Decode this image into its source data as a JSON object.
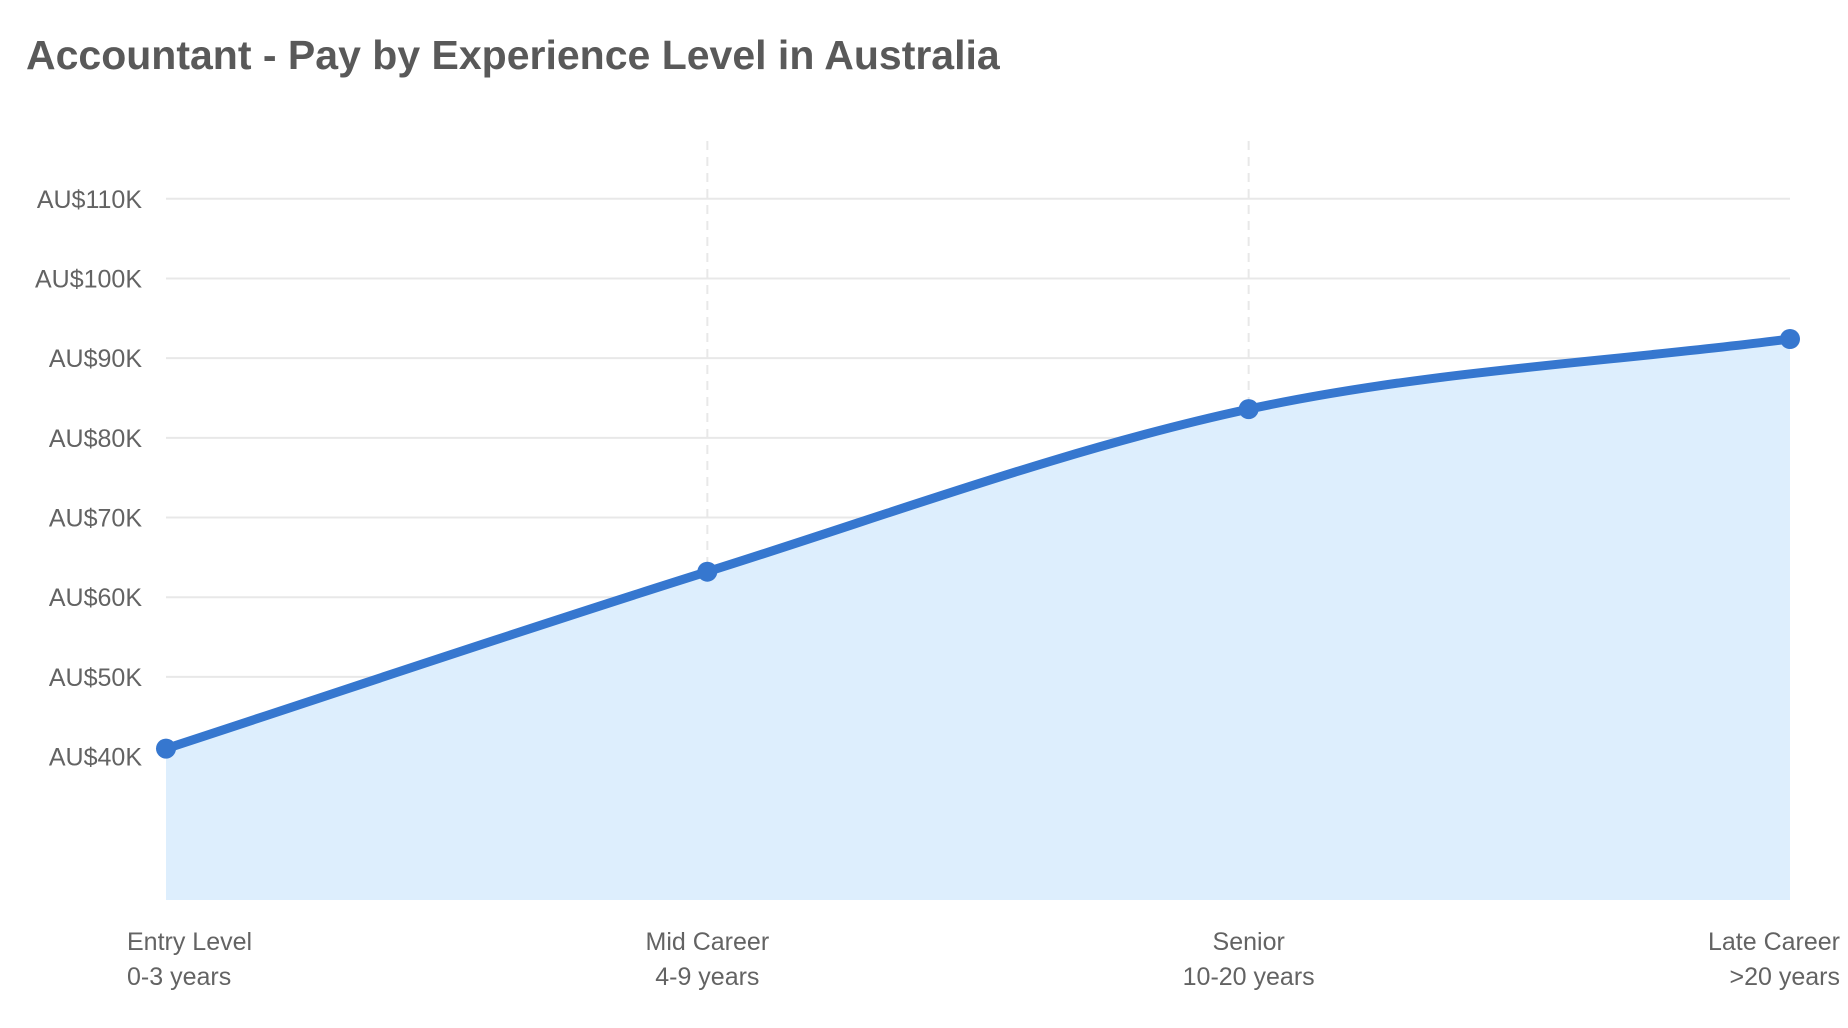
{
  "page": {
    "title": "Accountant - Pay by Experience Level in Australia"
  },
  "chart_data": {
    "type": "area",
    "title": "Accountant - Pay by Experience Level in Australia",
    "xlabel": "",
    "ylabel": "",
    "categories": [
      {
        "name": "Entry Level",
        "range": "0-3 years"
      },
      {
        "name": "Mid Career",
        "range": "4-9 years"
      },
      {
        "name": "Senior",
        "range": "10-20 years"
      },
      {
        "name": "Late Career",
        "range": ">20 years"
      }
    ],
    "values": [
      41000,
      63200,
      83600,
      92400
    ],
    "ylim": [
      22000,
      118000
    ],
    "yticks": [
      {
        "value": 40000,
        "label": "AU$40K"
      },
      {
        "value": 50000,
        "label": "AU$50K"
      },
      {
        "value": 60000,
        "label": "AU$60K"
      },
      {
        "value": 70000,
        "label": "AU$70K"
      },
      {
        "value": 80000,
        "label": "AU$80K"
      },
      {
        "value": 90000,
        "label": "AU$90K"
      },
      {
        "value": 100000,
        "label": "AU$100K"
      },
      {
        "value": 110000,
        "label": "AU$110K"
      }
    ],
    "grid": true,
    "colors": {
      "line": "#3677cf",
      "fill": "#ddeefd",
      "grid": "#e8e8e8",
      "text": "#636363"
    }
  }
}
